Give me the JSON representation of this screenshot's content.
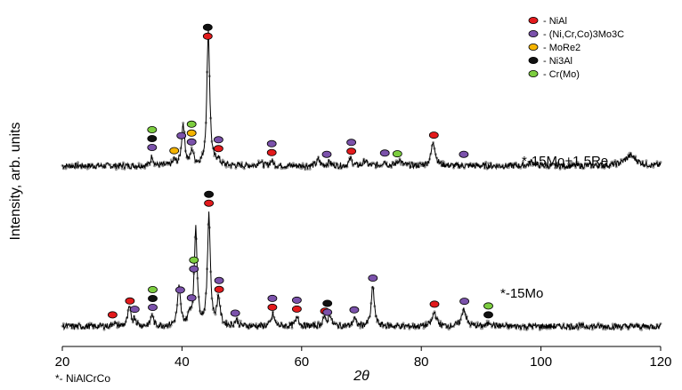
{
  "chart_data": {
    "type": "line",
    "xlabel": "2θ",
    "ylabel": "Intensity, arb. units",
    "xlim": [
      20,
      120
    ],
    "xticks": [
      20,
      40,
      60,
      80,
      100,
      120
    ],
    "footnote": "*- NiAlCrCo",
    "phases": [
      {
        "key": "NiAl",
        "label": "- NiAl",
        "color": "#e31a1c"
      },
      {
        "key": "carbide",
        "label": "- (Ni,Cr,Co)3Mo3C",
        "color": "#7b52ab"
      },
      {
        "key": "MoRe2",
        "label": "- MoRe2",
        "color": "#f5b400"
      },
      {
        "key": "Ni3Al",
        "label": "- Ni3Al",
        "color": "#111111"
      },
      {
        "key": "CrMo",
        "label": "- Cr(Mo)",
        "color": "#7ccd3f"
      }
    ],
    "series": [
      {
        "name": "*-15Mo+1.5Re",
        "base": 1.8,
        "peaks": [
          {
            "x": 35.0,
            "h": 0.1,
            "w": 0.25
          },
          {
            "x": 38.7,
            "h": 0.05,
            "w": 0.25
          },
          {
            "x": 40.2,
            "h": 0.42,
            "w": 0.3
          },
          {
            "x": 41.7,
            "h": 0.14,
            "w": 0.3
          },
          {
            "x": 44.4,
            "h": 1.36,
            "w": 0.28
          },
          {
            "x": 46.0,
            "h": 0.06,
            "w": 0.3
          },
          {
            "x": 53.0,
            "h": 0.05,
            "w": 0.3
          },
          {
            "x": 55.0,
            "h": 0.05,
            "w": 0.3
          },
          {
            "x": 62.8,
            "h": 0.06,
            "w": 0.3
          },
          {
            "x": 64.6,
            "h": 0.04,
            "w": 0.3
          },
          {
            "x": 68.2,
            "h": 0.07,
            "w": 0.3
          },
          {
            "x": 70.6,
            "h": 0.05,
            "w": 0.3
          },
          {
            "x": 73.8,
            "h": 0.05,
            "w": 0.3
          },
          {
            "x": 76.3,
            "h": 0.06,
            "w": 0.4
          },
          {
            "x": 82.0,
            "h": 0.24,
            "w": 0.4
          },
          {
            "x": 98.5,
            "h": 0.04,
            "w": 0.5
          },
          {
            "x": 115.0,
            "h": 0.1,
            "w": 1.2
          }
        ],
        "markers": [
          {
            "x": 35.0,
            "stack": [
              "carbide",
              "Ni3Al",
              "CrMo"
            ]
          },
          {
            "x": 38.7,
            "stack": [
              "MoRe2"
            ]
          },
          {
            "x": 39.9,
            "stack": [
              "carbide"
            ]
          },
          {
            "x": 41.6,
            "stack": [
              "carbide",
              "MoRe2",
              "CrMo"
            ]
          },
          {
            "x": 44.3,
            "stack": [
              "NiAl",
              "Ni3Al"
            ]
          },
          {
            "x": 46.1,
            "stack": [
              "NiAl",
              "carbide"
            ]
          },
          {
            "x": 55.0,
            "stack": [
              "NiAl",
              "carbide"
            ]
          },
          {
            "x": 64.2,
            "stack": [
              "carbide"
            ]
          },
          {
            "x": 68.3,
            "stack": [
              "NiAl",
              "carbide"
            ]
          },
          {
            "x": 73.9,
            "stack": [
              "carbide"
            ]
          },
          {
            "x": 76.0,
            "stack": [
              "CrMo"
            ]
          },
          {
            "x": 82.1,
            "stack": [
              "NiAl"
            ]
          },
          {
            "x": 87.1,
            "stack": [
              "carbide"
            ]
          }
        ]
      },
      {
        "name": "*-15Mo",
        "base": 0.2,
        "peaks": [
          {
            "x": 28.6,
            "h": 0.04,
            "w": 0.25
          },
          {
            "x": 31.2,
            "h": 0.18,
            "w": 0.3
          },
          {
            "x": 32.1,
            "h": 0.07,
            "w": 0.3
          },
          {
            "x": 35.0,
            "h": 0.12,
            "w": 0.25
          },
          {
            "x": 39.5,
            "h": 0.38,
            "w": 0.3
          },
          {
            "x": 41.3,
            "h": 0.1,
            "w": 0.3
          },
          {
            "x": 42.3,
            "h": 0.98,
            "w": 0.28
          },
          {
            "x": 44.5,
            "h": 1.12,
            "w": 0.28
          },
          {
            "x": 46.1,
            "h": 0.28,
            "w": 0.3
          },
          {
            "x": 49.1,
            "h": 0.06,
            "w": 0.3
          },
          {
            "x": 55.2,
            "h": 0.12,
            "w": 0.3
          },
          {
            "x": 59.3,
            "h": 0.1,
            "w": 0.3
          },
          {
            "x": 63.7,
            "h": 0.08,
            "w": 0.3
          },
          {
            "x": 64.7,
            "h": 0.12,
            "w": 0.3
          },
          {
            "x": 68.8,
            "h": 0.08,
            "w": 0.3
          },
          {
            "x": 71.9,
            "h": 0.4,
            "w": 0.3
          },
          {
            "x": 82.2,
            "h": 0.14,
            "w": 0.4
          },
          {
            "x": 87.1,
            "h": 0.18,
            "w": 0.4
          },
          {
            "x": 91.5,
            "h": 0.04,
            "w": 0.4
          }
        ],
        "markers": [
          {
            "x": 28.4,
            "stack": [
              "NiAl"
            ]
          },
          {
            "x": 31.3,
            "stack": [
              "NiAl"
            ]
          },
          {
            "x": 32.1,
            "stack": [
              "carbide"
            ]
          },
          {
            "x": 35.1,
            "stack": [
              "carbide",
              "Ni3Al",
              "CrMo"
            ]
          },
          {
            "x": 39.7,
            "stack": [
              "carbide"
            ]
          },
          {
            "x": 41.6,
            "stack": [
              "carbide"
            ]
          },
          {
            "x": 42.0,
            "stack": [
              "carbide",
              "CrMo"
            ]
          },
          {
            "x": 44.5,
            "stack": [
              "NiAl",
              "Ni3Al"
            ]
          },
          {
            "x": 46.2,
            "stack": [
              "NiAl",
              "carbide"
            ]
          },
          {
            "x": 48.9,
            "stack": [
              "carbide"
            ]
          },
          {
            "x": 55.1,
            "stack": [
              "NiAl",
              "carbide"
            ]
          },
          {
            "x": 59.2,
            "stack": [
              "NiAl",
              "carbide"
            ]
          },
          {
            "x": 63.9,
            "stack": [
              "NiAl"
            ]
          },
          {
            "x": 64.3,
            "stack": [
              "carbide",
              "Ni3Al"
            ]
          },
          {
            "x": 68.8,
            "stack": [
              "carbide"
            ]
          },
          {
            "x": 71.9,
            "stack": [
              "carbide"
            ]
          },
          {
            "x": 82.2,
            "stack": [
              "NiAl"
            ]
          },
          {
            "x": 87.2,
            "stack": [
              "carbide"
            ]
          },
          {
            "x": 91.2,
            "stack": [
              "Ni3Al",
              "CrMo"
            ]
          }
        ]
      }
    ]
  }
}
